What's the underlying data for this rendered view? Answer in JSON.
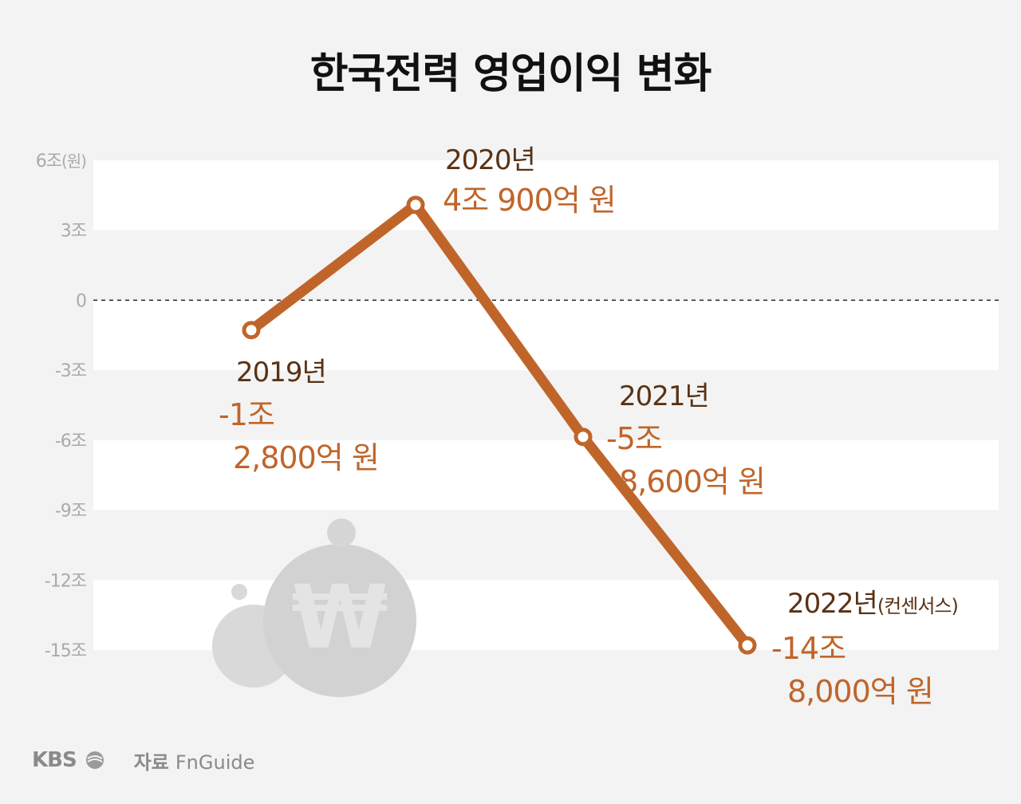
{
  "title": "한국전력 영업이익 변화",
  "footer": {
    "logo": "KBS",
    "source_label": "자료",
    "source_name": "FnGuide"
  },
  "colors": {
    "line": "#c0652a",
    "year_text": "#5a3214",
    "value_text": "#c0652a",
    "band": "#ffffff",
    "background": "#f3f3f3"
  },
  "chart_data": {
    "type": "line",
    "title": "한국전력 영업이익 변화",
    "y_unit": "(원)",
    "ylim": [
      -15,
      6
    ],
    "yticks": [
      {
        "value": 6,
        "label": "6조"
      },
      {
        "value": 3,
        "label": "3조"
      },
      {
        "value": 0,
        "label": "0"
      },
      {
        "value": -3,
        "label": "-3조"
      },
      {
        "value": -6,
        "label": "-6조"
      },
      {
        "value": -9,
        "label": "-9조"
      },
      {
        "value": -12,
        "label": "-12조"
      },
      {
        "value": -15,
        "label": "-15조"
      }
    ],
    "zero_line": "dashed",
    "points": [
      {
        "year": "2019년",
        "note": "",
        "value": -1.28,
        "label_lines": [
          "-1조",
          "2,800억 원"
        ]
      },
      {
        "year": "2020년",
        "note": "",
        "value": 4.09,
        "label_lines": [
          "4조 900억 원"
        ]
      },
      {
        "year": "2021년",
        "note": "",
        "value": -5.86,
        "label_lines": [
          "-5조",
          "8,600억 원"
        ]
      },
      {
        "year": "2022년",
        "note": "(컨센서스)",
        "value": -14.8,
        "label_lines": [
          "-14조",
          "8,000억 원"
        ]
      }
    ]
  }
}
